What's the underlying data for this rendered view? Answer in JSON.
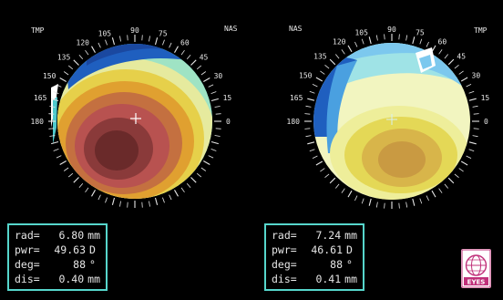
{
  "colors": {
    "background": "#000000",
    "scale_text": "#e8e8e8",
    "panel_border": "#56d6cc",
    "panel_text": "#e6e6e6",
    "crosshair": "#ffffff",
    "logo_accent": "#c0307a"
  },
  "icons": {
    "crosshair": "crosshair-icon",
    "logo": "globe-logo-icon"
  },
  "maps": [
    {
      "left_label": "TMP",
      "right_label": "NAS",
      "readout": {
        "rad": {
          "label": "rad=",
          "value": "6.80",
          "unit": "mm"
        },
        "pwr": {
          "label": "pwr=",
          "value": "49.63",
          "unit": "D"
        },
        "deg": {
          "label": "deg=",
          "value": "88",
          "unit": "°"
        },
        "dis": {
          "label": "dis=",
          "value": "0.40",
          "unit": "mm"
        }
      }
    },
    {
      "left_label": "NAS",
      "right_label": "TMP",
      "readout": {
        "rad": {
          "label": "rad=",
          "value": "7.24",
          "unit": "mm"
        },
        "pwr": {
          "label": "pwr=",
          "value": "46.61",
          "unit": "D"
        },
        "deg": {
          "label": "deg=",
          "value": "88",
          "unit": "°"
        },
        "dis": {
          "label": "dis=",
          "value": "0.41",
          "unit": "mm"
        }
      }
    }
  ],
  "scale_labels": [
    "180",
    "165",
    "150",
    "135",
    "120",
    "105",
    "90",
    "75",
    "60",
    "45",
    "30",
    "15",
    "0"
  ],
  "logo_text": "EYES"
}
